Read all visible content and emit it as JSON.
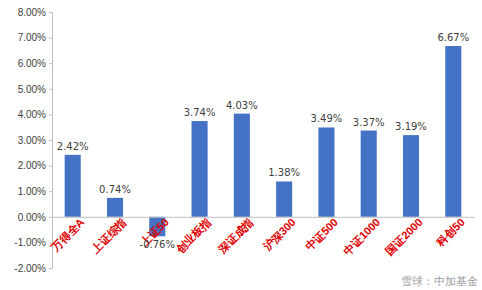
{
  "chart_data": {
    "type": "bar",
    "categories": [
      "万得全A",
      "上证综指",
      "上证50",
      "创业板指",
      "深证成指",
      "沪深300",
      "中证500",
      "中证1000",
      "国证2000",
      "科创50"
    ],
    "values": [
      2.42,
      0.74,
      -0.76,
      3.74,
      4.03,
      1.38,
      3.49,
      3.37,
      3.19,
      6.67
    ],
    "value_labels": [
      "2.42%",
      "0.74%",
      "-0.76%",
      "3.74%",
      "4.03%",
      "1.38%",
      "3.49%",
      "3.37%",
      "3.19%",
      "6.67%"
    ],
    "color": "#4472c4",
    "ylim": [
      -2,
      8
    ],
    "yticks": [
      {
        "value": -2,
        "label": "-2.00%"
      },
      {
        "value": -1,
        "label": "-1.00%"
      },
      {
        "value": 0,
        "label": "0.00%"
      },
      {
        "value": 1,
        "label": "1.00%"
      },
      {
        "value": 2,
        "label": "2.00%"
      },
      {
        "value": 3,
        "label": "3.00%"
      },
      {
        "value": 4,
        "label": "4.00%"
      },
      {
        "value": 5,
        "label": "5.00%"
      },
      {
        "value": 6,
        "label": "6.00%"
      },
      {
        "value": 7,
        "label": "7.00%"
      },
      {
        "value": 8,
        "label": "8.00%"
      }
    ],
    "grid": false,
    "data_labels": true,
    "annotations": [
      "雪球：中加基金"
    ]
  }
}
